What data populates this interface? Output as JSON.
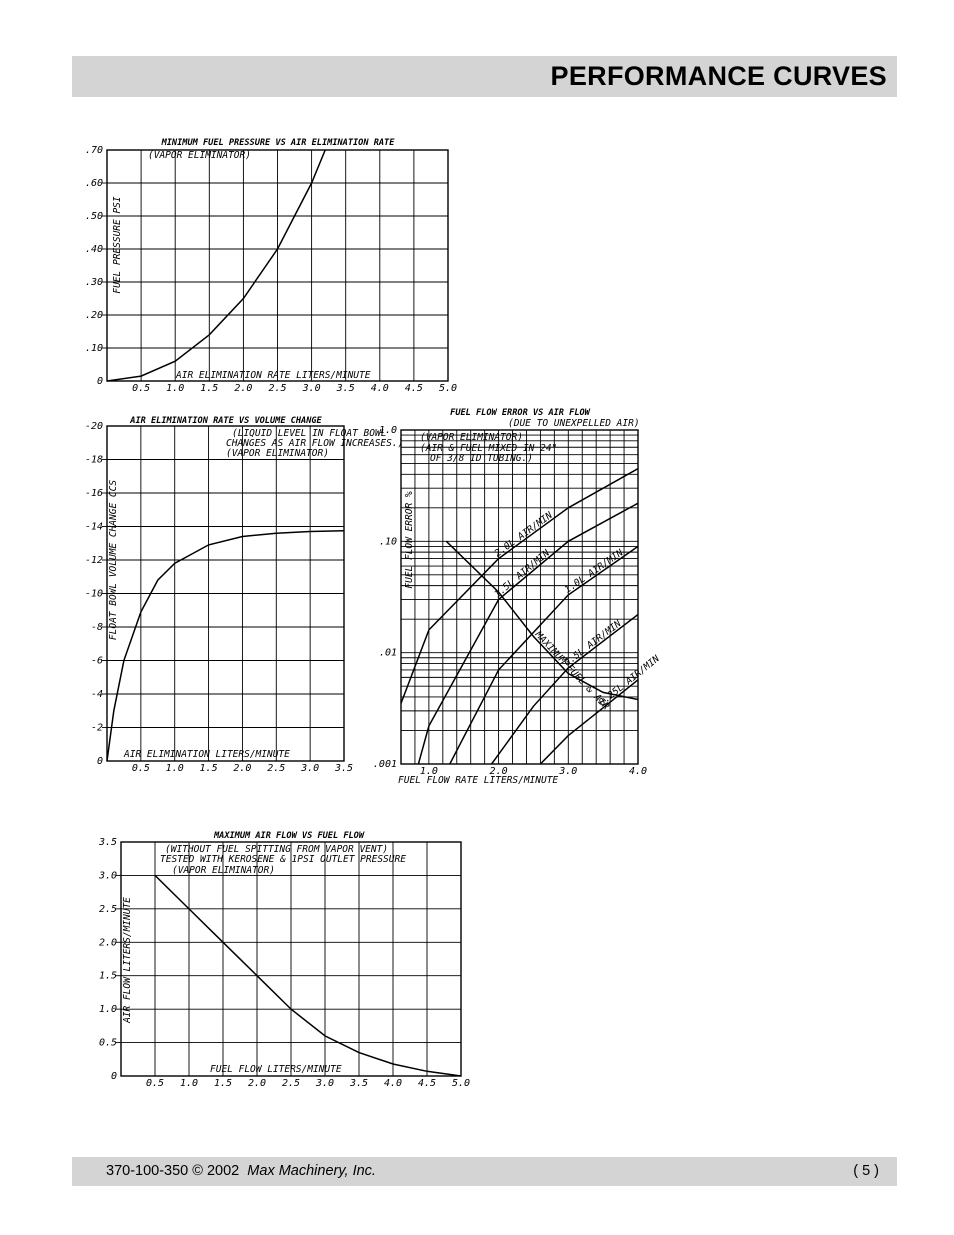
{
  "header": {
    "title": "PERFORMANCE CURVES"
  },
  "footer": {
    "doc": "370-100-350 © 2002",
    "company": "Max Machinery, Inc.",
    "page": "( 5 )"
  },
  "chart_data": [
    {
      "id": "c1",
      "type": "line",
      "title": "MINIMUM FUEL PRESSURE VS AIR ELIMINATION RATE",
      "notes": [
        "(VAPOR ELIMINATOR)"
      ],
      "xlabel": "AIR ELIMINATION RATE LITERS/MINUTE",
      "ylabel": "FUEL PRESSURE PSI",
      "xlim": [
        0,
        5
      ],
      "ylim": [
        0,
        0.7
      ],
      "grid": true,
      "xticks": [
        "0.5",
        "1.0",
        "1.5",
        "2.0",
        "2.5",
        "3.0",
        "3.5",
        "4.0",
        "4.5",
        "5.0"
      ],
      "yticks": [
        "0",
        ".10",
        ".20",
        ".30",
        ".40",
        ".50",
        ".60",
        ".70"
      ],
      "series": [
        {
          "x": [
            0,
            0.5,
            1.0,
            1.5,
            2.0,
            2.5,
            3.0,
            3.2
          ],
          "y": [
            0,
            0.015,
            0.06,
            0.14,
            0.25,
            0.4,
            0.6,
            0.7
          ]
        }
      ]
    },
    {
      "id": "c2",
      "type": "line",
      "title": "AIR ELIMINATION RATE VS VOLUME CHANGE",
      "notes": [
        "(LIQUID LEVEL IN FLOAT BOWL",
        "CHANGES AS AIR FLOW INCREASES.)",
        "(VAPOR ELIMINATOR)"
      ],
      "xlabel": "AIR ELIMINATION LITERS/MINUTE",
      "ylabel": "FLOAT BOWL VOLUME CHANGE CCS",
      "xlim": [
        0,
        3.5
      ],
      "ylim": [
        0,
        -20
      ],
      "grid": true,
      "xticks": [
        "0.5",
        "1.0",
        "1.5",
        "2.0",
        "2.5",
        "3.0",
        "3.5"
      ],
      "yticks": [
        "0",
        "-2",
        "-4",
        "-6",
        "-8",
        "-10",
        "-12",
        "-14",
        "-16",
        "-18",
        "-20"
      ],
      "series": [
        {
          "x": [
            0,
            0.1,
            0.25,
            0.5,
            0.75,
            1.0,
            1.5,
            2.0,
            2.5,
            3.0,
            3.5
          ],
          "y": [
            0,
            -3,
            -6,
            -8.9,
            -10.8,
            -11.8,
            -12.9,
            -13.4,
            -13.6,
            -13.7,
            -13.75
          ]
        }
      ]
    },
    {
      "id": "c3",
      "type": "line",
      "title": "FUEL FLOW ERROR VS AIR FLOW",
      "notes": [
        "(DUE TO UNEXPELLED AIR)",
        "(VAPOR ELIMINATOR)",
        "(AIR & FUEL MIXED IN 24\"",
        "OF 3/8 ID TUBING.)"
      ],
      "xlabel": "FUEL FLOW RATE LITERS/MINUTE",
      "ylabel": "FUEL FLOW ERROR %",
      "xscale": "linear",
      "yscale": "log",
      "xlim": [
        0.6,
        4.0
      ],
      "ylim": [
        0.001,
        1.0
      ],
      "grid": true,
      "xticks": [
        "1.0",
        "2.0",
        "3.0",
        "4.0"
      ],
      "yticks": [
        ".001",
        ".01",
        ".10",
        "1.0"
      ],
      "series": [
        {
          "name": "2.0L AIR/MIN",
          "x": [
            0.6,
            1.0,
            2.0,
            3.0,
            4.0
          ],
          "y": [
            0.0035,
            0.016,
            0.07,
            0.2,
            0.45
          ]
        },
        {
          "name": "1.5L AIR/MIN",
          "x": [
            0.85,
            1.0,
            2.0,
            3.0,
            4.0
          ],
          "y": [
            0.001,
            0.0022,
            0.03,
            0.1,
            0.22
          ]
        },
        {
          "name": "1.0L AIR/MIN",
          "x": [
            1.3,
            2.0,
            3.0,
            4.0
          ],
          "y": [
            0.001,
            0.007,
            0.033,
            0.09
          ]
        },
        {
          "name": "0.5L AIR/MIN",
          "x": [
            1.9,
            2.5,
            3.0,
            4.0
          ],
          "y": [
            0.001,
            0.0033,
            0.0073,
            0.022
          ]
        },
        {
          "name": "0.25L AIR/MIN",
          "x": [
            2.6,
            3.0,
            3.5,
            4.0
          ],
          "y": [
            0.001,
            0.0018,
            0.0032,
            0.0057
          ]
        },
        {
          "name": "MAXIMUM FUEL & AIR",
          "x": [
            1.25,
            2.0,
            2.5,
            3.0,
            3.5,
            4.0
          ],
          "y": [
            0.1,
            0.035,
            0.014,
            0.0065,
            0.0044,
            0.0038
          ]
        }
      ]
    },
    {
      "id": "c4",
      "type": "line",
      "title": "MAXIMUM AIR FLOW VS FUEL FLOW",
      "notes": [
        "(WITHOUT FUEL SPITTING FROM VAPOR VENT)",
        "TESTED WITH KEROSENE & 1PSI OUTLET PRESSURE",
        "(VAPOR ELIMINATOR)"
      ],
      "xlabel": "FUEL FLOW LITERS/MINUTE",
      "ylabel": "AIR FLOW LITERS/MINUTE",
      "xlim": [
        0,
        5
      ],
      "ylim": [
        0,
        3.5
      ],
      "grid": true,
      "xticks": [
        "0.5",
        "1.0",
        "1.5",
        "2.0",
        "2.5",
        "3.0",
        "3.5",
        "4.0",
        "4.5",
        "5.0"
      ],
      "yticks": [
        "0",
        "0.5",
        "1.0",
        "1.5",
        "2.0",
        "2.5",
        "3.0",
        "3.5"
      ],
      "series": [
        {
          "x": [
            0.5,
            1.0,
            1.5,
            2.0,
            2.5,
            3.0,
            3.5,
            4.0,
            4.5,
            5.0
          ],
          "y": [
            3.0,
            2.5,
            2.0,
            1.5,
            1.0,
            0.6,
            0.35,
            0.18,
            0.07,
            0.0
          ]
        }
      ]
    }
  ]
}
